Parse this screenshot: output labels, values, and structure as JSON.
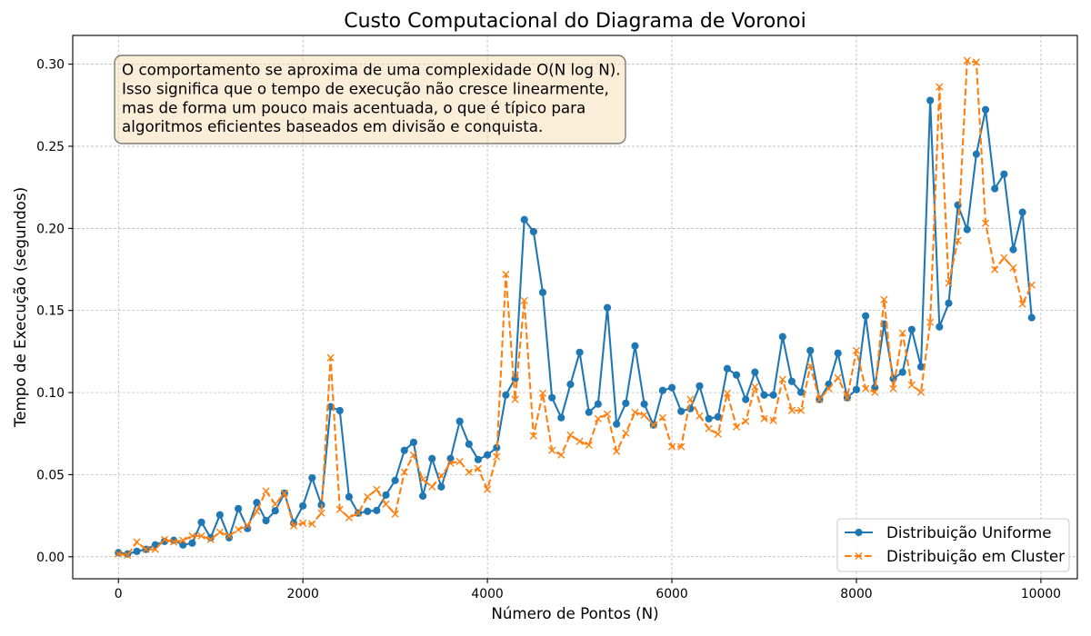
{
  "chart_data": {
    "type": "line",
    "title": "Custo Computacional do Diagrama de Voronoi",
    "xlabel": "Número de Pontos (N)",
    "ylabel": "Tempo de Execução (segundos)",
    "xlim": [
      -495,
      10395
    ],
    "ylim": [
      -0.0134,
      0.3175
    ],
    "xticks": [
      0,
      2000,
      4000,
      6000,
      8000,
      10000
    ],
    "xtick_labels": [
      "0",
      "2000",
      "4000",
      "6000",
      "8000",
      "10000"
    ],
    "yticks": [
      0.0,
      0.05,
      0.1,
      0.15,
      0.2,
      0.25,
      0.3
    ],
    "ytick_labels": [
      "0.00",
      "0.05",
      "0.10",
      "0.15",
      "0.20",
      "0.25",
      "0.30"
    ],
    "grid": true,
    "legend": {
      "position": "lower right"
    },
    "annotation": {
      "position": "top-left",
      "lines": [
        "O comportamento se aproxima de uma complexidade O(N log N).",
        "Isso significa que o tempo de execução não cresce linearmente,",
        "mas de forma um pouco mais acentuada, o que é típico para",
        "algoritmos eficientes baseados em divisão e conquista."
      ],
      "box_color": "#f5deb3"
    },
    "x": [
      0,
      100,
      200,
      300,
      400,
      500,
      600,
      700,
      800,
      900,
      1000,
      1100,
      1200,
      1300,
      1400,
      1500,
      1600,
      1700,
      1800,
      1900,
      2000,
      2100,
      2200,
      2300,
      2400,
      2500,
      2600,
      2700,
      2800,
      2900,
      3000,
      3100,
      3200,
      3300,
      3400,
      3500,
      3600,
      3700,
      3800,
      3900,
      4000,
      4100,
      4200,
      4300,
      4400,
      4500,
      4600,
      4700,
      4800,
      4900,
      5000,
      5100,
      5200,
      5300,
      5400,
      5500,
      5600,
      5700,
      5800,
      5900,
      6000,
      6100,
      6200,
      6300,
      6400,
      6500,
      6600,
      6700,
      6800,
      6900,
      7000,
      7100,
      7200,
      7300,
      7400,
      7500,
      7600,
      7700,
      7800,
      7900,
      8000,
      8100,
      8200,
      8300,
      8400,
      8500,
      8600,
      8700,
      8800,
      8900,
      9000,
      9100,
      9200,
      9300,
      9400,
      9500,
      9600,
      9700,
      9800,
      9900
    ],
    "series": [
      {
        "name": "Distribuição Uniforme",
        "color": "#1f77b4",
        "linestyle": "solid",
        "marker": "o",
        "values": [
          0.0025,
          0.0017,
          0.0033,
          0.0045,
          0.0072,
          0.0094,
          0.01,
          0.0072,
          0.0083,
          0.021,
          0.0116,
          0.0255,
          0.0116,
          0.0293,
          0.0172,
          0.033,
          0.022,
          0.028,
          0.0387,
          0.0205,
          0.031,
          0.048,
          0.0316,
          0.0913,
          0.089,
          0.0365,
          0.0266,
          0.0277,
          0.0282,
          0.0376,
          0.0465,
          0.0648,
          0.0697,
          0.037,
          0.0598,
          0.0426,
          0.0598,
          0.0825,
          0.0686,
          0.0592,
          0.062,
          0.0664,
          0.0985,
          0.1085,
          0.2053,
          0.198,
          0.161,
          0.0969,
          0.0847,
          0.105,
          0.1245,
          0.088,
          0.093,
          0.1517,
          0.0808,
          0.0935,
          0.1284,
          0.093,
          0.0803,
          0.1013,
          0.103,
          0.0886,
          0.0902,
          0.104,
          0.0841,
          0.0852,
          0.1146,
          0.1107,
          0.0958,
          0.1124,
          0.0985,
          0.0985,
          0.134,
          0.1068,
          0.1002,
          0.1256,
          0.0958,
          0.105,
          0.124,
          0.0969,
          0.1018,
          0.1467,
          0.103,
          0.1417,
          0.1085,
          0.1124,
          0.1384,
          0.1157,
          0.2779,
          0.14,
          0.1544,
          0.2142,
          0.1993,
          0.2452,
          0.2723,
          0.2242,
          0.233,
          0.1871,
          0.2098,
          0.1456
        ]
      },
      {
        "name": "Distribuição em Cluster",
        "color": "#ff7f0e",
        "linestyle": "dashed",
        "marker": "x",
        "values": [
          0.0017,
          0.001,
          0.009,
          0.0045,
          0.0045,
          0.0105,
          0.009,
          0.01,
          0.0127,
          0.0127,
          0.0105,
          0.015,
          0.0127,
          0.0166,
          0.019,
          0.0277,
          0.04,
          0.032,
          0.0387,
          0.0188,
          0.0205,
          0.02,
          0.0266,
          0.1212,
          0.0288,
          0.0238,
          0.0266,
          0.0365,
          0.041,
          0.032,
          0.026,
          0.0515,
          0.062,
          0.047,
          0.0426,
          0.0493,
          0.057,
          0.058,
          0.0515,
          0.0537,
          0.041,
          0.0609,
          0.172,
          0.0958,
          0.156,
          0.0736,
          0.0996,
          0.0648,
          0.062,
          0.0742,
          0.0703,
          0.068,
          0.0841,
          0.0869,
          0.0642,
          0.0753,
          0.088,
          0.0863,
          0.0803,
          0.0847,
          0.067,
          0.067,
          0.0958,
          0.0858,
          0.078,
          0.0747,
          0.0996,
          0.0791,
          0.0825,
          0.1035,
          0.0841,
          0.083,
          0.108,
          0.0891,
          0.0891,
          0.1162,
          0.0958,
          0.1024,
          0.109,
          0.0969,
          0.1256,
          0.1024,
          0.1002,
          0.1566,
          0.1024,
          0.1362,
          0.1046,
          0.1002,
          0.1428,
          0.2862,
          0.1666,
          0.1926,
          0.3022,
          0.3011,
          0.2031,
          0.1749,
          0.1821,
          0.176,
          0.1539,
          0.1655
        ]
      }
    ]
  }
}
